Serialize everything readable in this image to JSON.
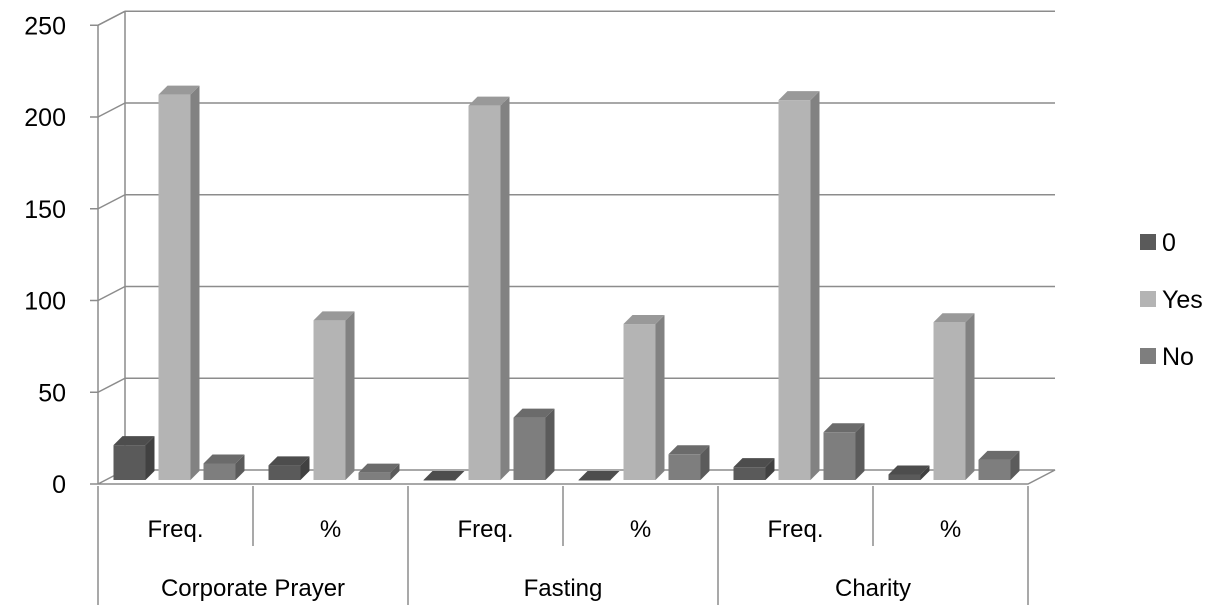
{
  "chart_data": {
    "type": "bar",
    "style": "3d-clustered-column",
    "groups": [
      {
        "label": "Corporate Prayer",
        "categories": [
          "Freq.",
          "%"
        ]
      },
      {
        "label": "Fasting",
        "categories": [
          "Freq.",
          "%"
        ]
      },
      {
        "label": "Charity",
        "categories": [
          "Freq.",
          "%"
        ]
      }
    ],
    "categories": [
      "Freq.",
      "%",
      "Freq.",
      "%",
      "Freq.",
      "%"
    ],
    "series": [
      {
        "name": "0",
        "color": "#5a5a5a",
        "values": [
          19,
          8,
          0,
          0,
          7,
          3
        ]
      },
      {
        "name": "Yes",
        "color": "#b4b4b4",
        "values": [
          210,
          87,
          204,
          85,
          207,
          86
        ]
      },
      {
        "name": "No",
        "color": "#7e7e7e",
        "values": [
          9,
          4,
          34,
          14,
          26,
          11
        ]
      }
    ],
    "ylim": [
      0,
      250
    ],
    "yticks": [
      0,
      50,
      100,
      150,
      200,
      250
    ],
    "grid": true,
    "legend_position": "right"
  }
}
